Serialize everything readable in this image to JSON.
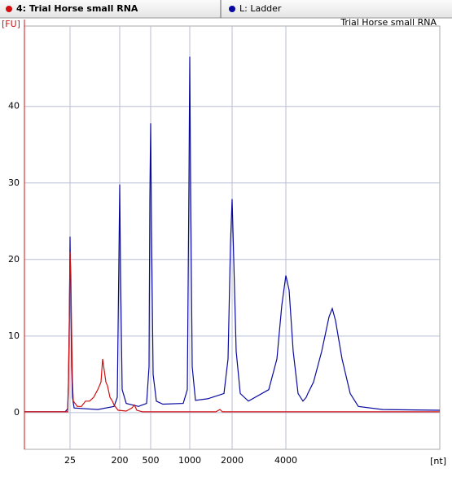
{
  "chart_data": {
    "type": "line",
    "title": "Trial Horse small RNA",
    "y_label": "[FU]",
    "x_label": "[nt]",
    "xlim": [
      0,
      8000
    ],
    "xticks": [
      25,
      200,
      500,
      1000,
      2000,
      4000
    ],
    "ylim": [
      -4.8,
      50.5
    ],
    "yticks": [
      0,
      10,
      20,
      30,
      40
    ],
    "grid": true,
    "series": [
      {
        "name": "4: Trial Horse small RNA",
        "color": "#d01010",
        "x": [
          0,
          23.7,
          24.1,
          24.6,
          25,
          27.9,
          30.7,
          33.6,
          36.5,
          50.8,
          65.2,
          79.5,
          93.9,
          108.2,
          122.5,
          134.0,
          139.8,
          145.5,
          151.2,
          157,
          165.6,
          174.2,
          179.9,
          194.3,
          263.2,
          318.4,
          342.1,
          365.8,
          421.1,
          1615,
          1712,
          1769,
          8000
        ],
        "values": [
          0.1,
          0.1,
          3,
          12,
          21,
          18,
          10,
          4,
          1.5,
          0.8,
          0.8,
          1.5,
          1.5,
          2,
          3,
          4,
          7,
          5.5,
          4,
          3.5,
          2,
          1.5,
          1,
          0.3,
          0.2,
          0.6,
          1,
          0.3,
          0.1,
          0.1,
          0.4,
          0.1,
          0.1
        ]
      },
      {
        "name": "L: Ladder",
        "color": "#0a0aa0",
        "x": [
          0,
          22.3,
          23.7,
          24.1,
          24.6,
          25,
          27.9,
          30.7,
          33.6,
          39.3,
          122.5,
          179.9,
          191.4,
          197.1,
          200,
          207.9,
          223.7,
          263.2,
          381.6,
          460.5,
          484.2,
          492.1,
          500,
          510.4,
          531.3,
          572.9,
          656.3,
          916.7,
          968.8,
          989.6,
          1000,
          1019,
          1058,
          1135,
          1423,
          1808,
          1904,
          1962,
          2000,
          2061,
          2152,
          2303,
          2606,
          3364,
          3667,
          3848,
          4000,
          4085,
          4190,
          4317,
          4444,
          4529,
          4571,
          4719,
          4931,
          5121,
          5206,
          5291,
          5460,
          5672,
          5883,
          6518,
          8000
        ],
        "values": [
          0.1,
          0.1,
          0.5,
          4,
          12,
          23,
          15,
          6,
          2,
          0.6,
          0.4,
          0.8,
          2,
          20,
          29.8,
          18,
          3,
          1.2,
          0.8,
          1.2,
          6,
          28,
          37.8,
          24,
          5,
          1.5,
          1.1,
          1.2,
          3,
          30,
          46.5,
          30,
          6,
          1.6,
          1.8,
          2.5,
          7,
          22,
          27.9,
          20,
          8,
          2.5,
          1.5,
          3,
          7,
          14,
          17.9,
          16,
          8,
          2.5,
          1.5,
          2,
          2.5,
          4,
          8,
          12.5,
          13.6,
          12,
          7,
          2.5,
          0.8,
          0.4,
          0.3
        ]
      }
    ]
  }
}
